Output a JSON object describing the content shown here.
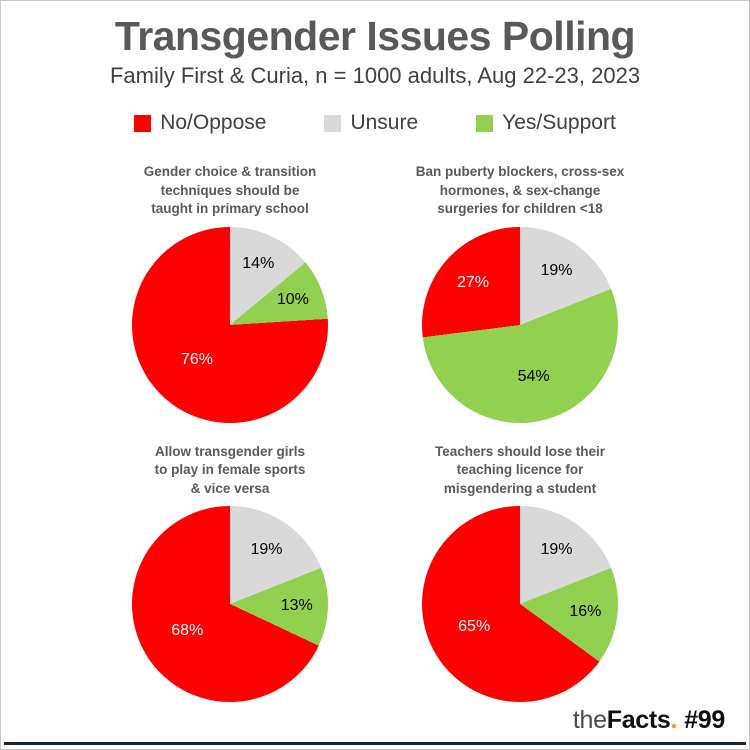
{
  "page": {
    "title": "Transgender Issues Polling",
    "subtitle": "Family First & Curia, n = 1000 adults, Aug 22-23, 2023",
    "branding": {
      "prefix": "the",
      "name": "Facts",
      "dot": ".",
      "number": "#99"
    }
  },
  "colors": {
    "no": "#fe0000",
    "unsure": "#d9d9d9",
    "yes": "#92d050",
    "title_gray": "#595959",
    "footer_bar": "#1b2140",
    "branding_dot": "#f7941d"
  },
  "legend": {
    "items": [
      {
        "key": "no",
        "label": "No/Oppose"
      },
      {
        "key": "unsure",
        "label": "Unsure"
      },
      {
        "key": "yes",
        "label": "Yes/Support"
      }
    ]
  },
  "chart_data": [
    {
      "type": "pie",
      "title": "Gender choice & transition techniques should be taught in primary school",
      "title_lines": [
        "Gender choice & transition",
        "techniques should be",
        "taught in primary school"
      ],
      "slices": [
        {
          "key": "unsure",
          "label": "Unsure",
          "value": 14,
          "label_text": "14%"
        },
        {
          "key": "yes",
          "label": "Yes/Support",
          "value": 10,
          "label_text": "10%"
        },
        {
          "key": "no",
          "label": "No/Oppose",
          "value": 76,
          "label_text": "76%"
        }
      ]
    },
    {
      "type": "pie",
      "title": "Ban puberty blockers, cross-sex hormones, & sex-change surgeries for children <18",
      "title_lines": [
        "Ban puberty blockers, cross-sex",
        "hormones, & sex-change",
        "surgeries for children <18"
      ],
      "slices": [
        {
          "key": "unsure",
          "label": "Unsure",
          "value": 19,
          "label_text": "19%"
        },
        {
          "key": "yes",
          "label": "Yes/Support",
          "value": 54,
          "label_text": "54%"
        },
        {
          "key": "no",
          "label": "No/Oppose",
          "value": 27,
          "label_text": "27%"
        }
      ]
    },
    {
      "type": "pie",
      "title": "Allow transgender girls to play in female sports & vice versa",
      "title_lines": [
        "Allow transgender girls",
        "to play in female sports",
        "& vice versa"
      ],
      "slices": [
        {
          "key": "unsure",
          "label": "Unsure",
          "value": 19,
          "label_text": "19%"
        },
        {
          "key": "yes",
          "label": "Yes/Support",
          "value": 13,
          "label_text": "13%"
        },
        {
          "key": "no",
          "label": "No/Oppose",
          "value": 68,
          "label_text": "68%"
        }
      ]
    },
    {
      "type": "pie",
      "title": "Teachers should lose their teaching licence for misgendering a student",
      "title_lines": [
        "Teachers should lose their",
        "teaching licence for",
        "misgendering a student"
      ],
      "slices": [
        {
          "key": "unsure",
          "label": "Unsure",
          "value": 19,
          "label_text": "19%"
        },
        {
          "key": "yes",
          "label": "Yes/Support",
          "value": 16,
          "label_text": "16%"
        },
        {
          "key": "no",
          "label": "No/Oppose",
          "value": 65,
          "label_text": "65%"
        }
      ]
    }
  ]
}
